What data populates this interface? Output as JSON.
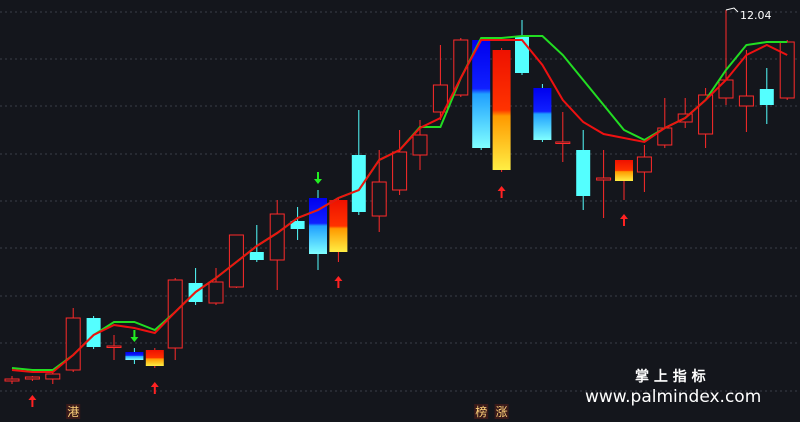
{
  "chart_data": {
    "type": "candlestick",
    "open": [
      8.33,
      8.35,
      8.35,
      8.44,
      8.96,
      8.67,
      8.62,
      8.48,
      8.66,
      9.31,
      9.11,
      9.27,
      9.62,
      9.54,
      9.93,
      10.16,
      9.62,
      10.59,
      9.98,
      10.24,
      10.59,
      11.02,
      11.19,
      11.74,
      10.44,
      11.78,
      11.26,
      10.71,
      10.64,
      10.34,
      10.33,
      10.42,
      10.69,
      10.92,
      10.8,
      11.16,
      11.08,
      11.25,
      11.16
    ],
    "high": [
      8.38,
      8.38,
      8.42,
      9.06,
      8.98,
      8.79,
      8.66,
      8.66,
      9.36,
      9.46,
      9.46,
      9.79,
      9.89,
      10.14,
      10.07,
      10.24,
      10.16,
      11.04,
      10.64,
      10.84,
      10.94,
      11.69,
      11.76,
      11.76,
      11.66,
      11.94,
      11.3,
      11.02,
      10.84,
      10.64,
      10.54,
      10.69,
      11.16,
      11.16,
      11.26,
      12.04,
      11.64,
      11.46,
      11.74
    ],
    "low": [
      8.3,
      8.33,
      8.3,
      8.42,
      8.65,
      8.54,
      8.5,
      8.46,
      8.54,
      9.09,
      9.09,
      9.26,
      9.52,
      9.24,
      9.74,
      9.44,
      9.52,
      9.99,
      9.82,
      10.19,
      10.44,
      10.94,
      11.17,
      10.64,
      10.42,
      11.39,
      10.72,
      10.52,
      10.04,
      9.96,
      10.14,
      10.22,
      10.66,
      10.86,
      10.66,
      11.09,
      10.82,
      10.9,
      11.14
    ],
    "close": [
      8.35,
      8.37,
      8.4,
      8.96,
      8.67,
      8.68,
      8.54,
      8.64,
      9.34,
      9.12,
      9.32,
      9.79,
      9.54,
      10.0,
      9.85,
      9.6,
      10.14,
      10.02,
      10.32,
      10.62,
      10.79,
      11.29,
      11.74,
      10.66,
      11.64,
      11.41,
      10.74,
      10.72,
      10.18,
      10.36,
      10.54,
      10.57,
      10.86,
      11.0,
      11.19,
      11.34,
      11.18,
      11.09,
      11.72
    ],
    "series": [
      {
        "color": "#22dd22",
        "values": [
          8.46,
          8.44,
          8.44,
          8.59,
          8.79,
          8.92,
          8.92,
          8.84,
          9.02,
          9.22,
          9.36,
          9.52,
          9.68,
          9.81,
          9.96,
          10.04,
          10.16,
          10.24,
          10.54,
          10.64,
          10.87,
          10.87,
          11.36,
          11.76,
          11.76,
          11.78,
          11.78,
          11.59,
          11.34,
          11.09,
          10.84,
          10.74,
          10.86,
          10.96,
          11.14,
          11.44,
          11.69,
          11.72,
          11.72
        ]
      },
      {
        "color": "#ee1111",
        "values": [
          8.44,
          8.42,
          8.42,
          8.59,
          8.79,
          8.89,
          8.86,
          8.81,
          9.02,
          9.22,
          9.36,
          9.52,
          9.68,
          9.81,
          9.96,
          10.04,
          10.16,
          10.24,
          10.54,
          10.64,
          10.86,
          10.96,
          11.36,
          11.74,
          11.74,
          11.74,
          11.49,
          11.14,
          10.92,
          10.8,
          10.76,
          10.72,
          10.86,
          10.96,
          11.14,
          11.34,
          11.59,
          11.69,
          11.59
        ]
      }
    ],
    "signal_candles": [
      6,
      7,
      15,
      16,
      23,
      24,
      26,
      30
    ],
    "buy_signals": [
      1,
      7,
      16,
      24,
      30
    ],
    "sell_signals": [
      6,
      15
    ],
    "markers": [
      {
        "label": "港",
        "index": 3
      },
      {
        "label": "榜",
        "index": 23
      },
      {
        "label": "涨",
        "index": 24
      }
    ],
    "watermark": {
      "title": "掌 上 指 标",
      "url": "www.palmindex.com"
    }
  }
}
